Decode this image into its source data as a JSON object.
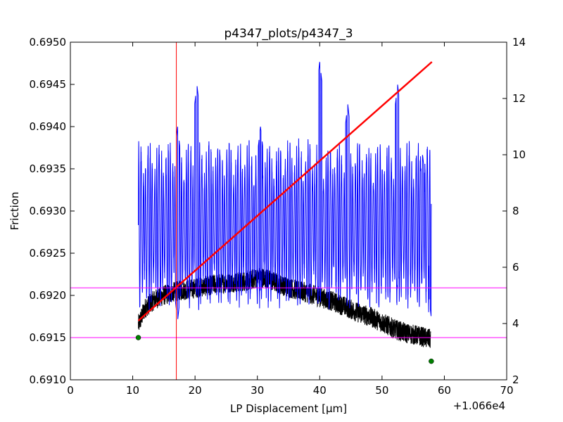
{
  "chart_data": {
    "type": "line",
    "title": "p4347_plots/p4347_3",
    "xlabel": "LP Displacement [μm]",
    "ylabel": "Friction",
    "x_offset_label": "+1.066e4",
    "xlim": [
      0,
      70
    ],
    "ylim": [
      0.691,
      0.695
    ],
    "y2lim": [
      2,
      14
    ],
    "xticks": [
      "0",
      "10",
      "20",
      "30",
      "40",
      "50",
      "60",
      "70"
    ],
    "xtick_values": [
      0,
      10,
      20,
      30,
      40,
      50,
      60,
      70
    ],
    "yticks": [
      "0.6910",
      "0.6915",
      "0.6920",
      "0.6925",
      "0.6930",
      "0.6935",
      "0.6940",
      "0.6945",
      "0.6950"
    ],
    "ytick_values": [
      0.691,
      0.6915,
      0.692,
      0.6925,
      0.693,
      0.6935,
      0.694,
      0.6945,
      0.695
    ],
    "y2ticks": [
      "2",
      "4",
      "6",
      "8",
      "10",
      "12",
      "14"
    ],
    "y2tick_values": [
      2,
      4,
      6,
      8,
      10,
      12,
      14
    ],
    "grid": false,
    "series": [
      {
        "axis": "left",
        "color": "#000000",
        "style": "noisy",
        "noise": 0.00012,
        "points": [
          [
            10.9,
            0.69165
          ],
          [
            12,
            0.69185
          ],
          [
            13.5,
            0.69195
          ],
          [
            15,
            0.692
          ],
          [
            17,
            0.69205
          ],
          [
            19,
            0.69207
          ],
          [
            21,
            0.6921
          ],
          [
            23,
            0.69213
          ],
          [
            25,
            0.69215
          ],
          [
            27,
            0.69216
          ],
          [
            29,
            0.69218
          ],
          [
            30.5,
            0.69222
          ],
          [
            32,
            0.69218
          ],
          [
            34,
            0.69212
          ],
          [
            36,
            0.69207
          ],
          [
            38,
            0.69203
          ],
          [
            40,
            0.69198
          ],
          [
            42,
            0.69193
          ],
          [
            44,
            0.69187
          ],
          [
            46,
            0.6918
          ],
          [
            48,
            0.69175
          ],
          [
            50,
            0.69168
          ],
          [
            52,
            0.6916
          ],
          [
            54,
            0.69155
          ],
          [
            56,
            0.69152
          ],
          [
            57.8,
            0.69148
          ]
        ]
      },
      {
        "axis": "right",
        "color": "#0000ff",
        "style": "oscillating",
        "x_range": [
          10.9,
          57.9
        ],
        "center": 7.5,
        "amplitude": 2.3,
        "cycles": 130,
        "peaks": [
          [
            10.9,
            8.5
          ],
          [
            17.2,
            11.0
          ],
          [
            20.3,
            12.5
          ],
          [
            30.5,
            11.0
          ],
          [
            40.0,
            13.3
          ],
          [
            44.5,
            11.8
          ],
          [
            52.5,
            12.5
          ],
          [
            56.5,
            10.0
          ]
        ],
        "troughs": [
          [
            10.9,
            6.5
          ],
          [
            17.2,
            4.1
          ],
          [
            20.3,
            5.0
          ],
          [
            30.5,
            5.0
          ],
          [
            40.0,
            4.9
          ],
          [
            52.5,
            5.2
          ],
          [
            57.9,
            4.2
          ]
        ]
      },
      {
        "axis": "right",
        "color": "#ff0000",
        "style": "fit-line",
        "points": [
          [
            10.9,
            4.1
          ],
          [
            58.0,
            13.3
          ]
        ]
      }
    ],
    "markers": [
      {
        "x": 10.9,
        "y": 0.6915,
        "color": "#008000"
      },
      {
        "x": 57.9,
        "y": 0.69122,
        "color": "#008000"
      }
    ],
    "hlines": [
      {
        "y": 0.69209,
        "color": "#ff00ff"
      },
      {
        "y": 0.6915,
        "color": "#ff00ff"
      }
    ],
    "vlines": [
      {
        "x": 17.0,
        "color": "#ff0000"
      }
    ]
  }
}
